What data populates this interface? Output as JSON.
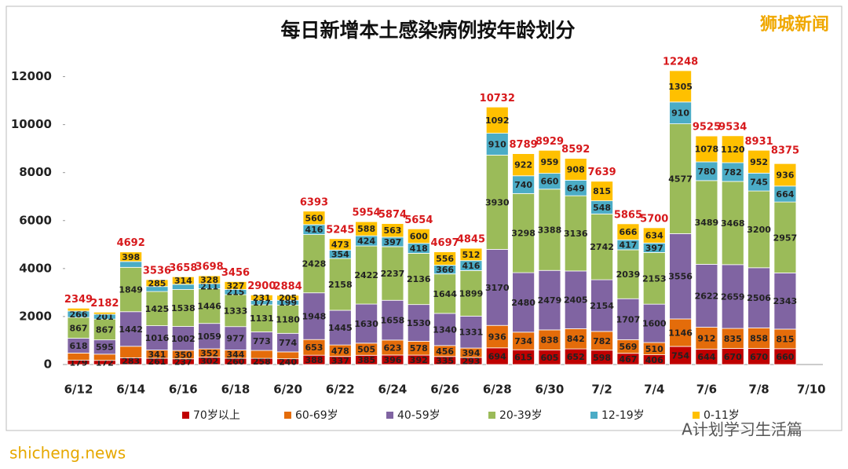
{
  "chart_data": {
    "type": "stacked_bar",
    "title": "每日新增本土感染病例按年龄划分",
    "watermarks": [
      "狮城新闻",
      "shicheng.news",
      "A计划学习生活篇"
    ],
    "categories": [
      "6/12",
      null,
      "6/14",
      null,
      "6/16",
      null,
      "6/18",
      null,
      "6/20",
      null,
      "6/22",
      null,
      "6/24",
      null,
      "6/26",
      null,
      "6/28",
      null,
      "6/30",
      null,
      "7/2",
      null,
      "7/4",
      null,
      "7/6",
      null,
      "7/8",
      null,
      "7/10"
    ],
    "ylim": [
      0,
      13000
    ],
    "yticks": [
      0,
      2000,
      4000,
      6000,
      8000,
      10000,
      12000
    ],
    "legend": "bottom",
    "series": [
      {
        "name": "70岁以上",
        "color": "#c00000",
        "values": [
          179,
          172,
          283,
          261,
          237,
          302,
          260,
          258,
          240,
          388,
          337,
          385,
          396,
          392,
          335,
          293,
          694,
          615,
          605,
          652,
          598,
          467,
          406,
          754,
          644,
          670,
          670,
          660,
          null
        ],
        "value_labels": [
          "179",
          "172",
          "283",
          "261",
          "237",
          "302",
          "260",
          "258",
          "240",
          "388",
          "337",
          "385",
          "396",
          "392",
          "335",
          "293",
          "694",
          "615",
          "605",
          "652",
          "598",
          "467",
          "406",
          "754",
          "644",
          "670",
          "670",
          "660",
          null
        ]
      },
      {
        "name": "60-69岁",
        "color": "#e46c0a",
        "values": [
          300,
          260,
          477,
          341,
          350,
          352,
          344,
          330,
          286,
          653,
          478,
          505,
          623,
          578,
          456,
          394,
          936,
          734,
          838,
          842,
          782,
          569,
          510,
          1146,
          912,
          835,
          858,
          815,
          null
        ],
        "value_labels": [
          null,
          null,
          null,
          "341",
          "350",
          "352",
          "344",
          null,
          null,
          "653",
          "478",
          "505",
          "623",
          "578",
          "456",
          "394",
          "936",
          "734",
          "838",
          "842",
          "782",
          "569",
          "510",
          "1146",
          "912",
          "835",
          "858",
          "815",
          null
        ]
      },
      {
        "name": "40-59岁",
        "color": "#8064a2",
        "values": [
          618,
          595,
          1442,
          1016,
          1002,
          1059,
          977,
          773,
          774,
          1948,
          1445,
          1630,
          1658,
          1530,
          1340,
          1331,
          3170,
          2480,
          2479,
          2405,
          2154,
          1707,
          1600,
          3556,
          2622,
          2659,
          2506,
          2343,
          null
        ],
        "value_labels": [
          "618",
          "595",
          "1442",
          "1016",
          "1002",
          "1059",
          "977",
          "773",
          "774",
          "1948",
          "1445",
          "1630",
          "1658",
          "1530",
          "1340",
          "1331",
          "3170",
          "2480",
          "2479",
          "2405",
          "2154",
          "1707",
          "1600",
          "3556",
          "2622",
          "2659",
          "2506",
          "2343",
          null
        ]
      },
      {
        "name": "20-39岁",
        "color": "#9bbb59",
        "values": [
          867,
          867,
          1849,
          1425,
          1538,
          1446,
          1333,
          1131,
          1180,
          2428,
          2158,
          2422,
          2237,
          2136,
          1644,
          1899,
          3930,
          3298,
          3388,
          3136,
          2742,
          2039,
          2153,
          4577,
          3489,
          3468,
          3200,
          2957,
          null
        ],
        "value_labels": [
          "867",
          "867",
          "1849",
          "1425",
          "1538",
          "1446",
          "1333",
          "1131",
          "1180",
          "2428",
          "2158",
          "2422",
          "2237",
          "2136",
          "1644",
          "1899",
          "3930",
          "3298",
          "3388",
          "3136",
          "2742",
          "2039",
          "2153",
          "4577",
          "3489",
          "3468",
          "3200",
          "2957",
          null
        ]
      },
      {
        "name": "12-19岁",
        "color": "#4bacc6",
        "values": [
          266,
          201,
          243,
          208,
          217,
          211,
          215,
          177,
          199,
          416,
          354,
          424,
          397,
          418,
          366,
          416,
          910,
          740,
          660,
          649,
          548,
          417,
          397,
          910,
          780,
          782,
          745,
          664,
          null
        ],
        "value_labels": [
          "266",
          "201",
          null,
          null,
          null,
          "211",
          "215",
          "177",
          "199",
          "416",
          "354",
          "424",
          "397",
          "418",
          "366",
          "416",
          "910",
          "740",
          "660",
          "649",
          "548",
          "417",
          "397",
          "910",
          "780",
          "782",
          "745",
          "664",
          null
        ]
      },
      {
        "name": "0-11岁",
        "color": "#ffc000",
        "values": [
          119,
          87,
          398,
          285,
          314,
          328,
          327,
          231,
          205,
          560,
          473,
          588,
          563,
          600,
          556,
          512,
          1092,
          922,
          959,
          908,
          815,
          666,
          634,
          1305,
          1078,
          1120,
          952,
          936,
          null
        ],
        "value_labels": [
          null,
          null,
          "398",
          "285",
          "314",
          "328",
          "327",
          "231",
          "205",
          "560",
          "473",
          "588",
          "563",
          "600",
          "556",
          "512",
          "1092",
          "922",
          "959",
          "908",
          "815",
          "666",
          "634",
          "1305",
          "1078",
          "1120",
          "952",
          "936",
          null
        ]
      }
    ],
    "totals": [
      2349,
      2182,
      4692,
      3536,
      3658,
      3698,
      3456,
      2900,
      2884,
      6393,
      5245,
      5954,
      5874,
      5654,
      4697,
      4845,
      10732,
      8789,
      8929,
      8592,
      7639,
      5865,
      5700,
      12248,
      9525,
      9534,
      8931,
      8375,
      null
    ]
  }
}
